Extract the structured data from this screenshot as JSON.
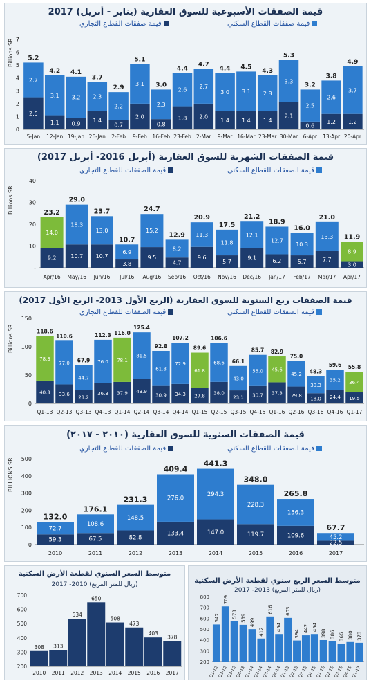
{
  "colors": {
    "dark": "#1d3c6e",
    "mid": "#2e7dcf",
    "green": "#7dbb3a",
    "bg": "#eef3f7"
  },
  "chart_data": [
    {
      "id": "weekly",
      "type": "bar",
      "title": "قيمة الصفقات الأسبوعية للسوق العقارية (يناير - أبريل) 2017",
      "ylabel": "Billions SR",
      "ylim": [
        0,
        7
      ],
      "yticks": [
        0,
        1,
        2,
        3,
        4,
        5,
        6,
        7
      ],
      "legend": [
        "قيمة صفقات القطاع السكني",
        "قيمة صفقات القطاع التجاري"
      ],
      "categories": [
        "5-Jan",
        "12-Jan",
        "19-Jan",
        "26-Jan",
        "2-Feb",
        "9-Feb",
        "16-Feb",
        "23-Feb",
        "2-Mar",
        "9-Mar",
        "16-Mar",
        "23-Mar",
        "30-Mar",
        "6-Apr",
        "13-Apr",
        "20-Apr"
      ],
      "totals": [
        "5.2",
        "4.2",
        "4.1",
        "3.7",
        "2.9",
        "5.1",
        "3.0",
        "4.4",
        "4.7",
        "4.4",
        "4.5",
        "4.3",
        "5.3",
        "3.2",
        "3.8",
        "4.9"
      ],
      "series": [
        {
          "name": "قيمة صفقات القطاع التجاري",
          "values": [
            2.5,
            1.1,
            0.9,
            1.4,
            0.7,
            2.0,
            0.8,
            1.8,
            2.0,
            1.4,
            1.4,
            1.4,
            2.1,
            0.6,
            1.2,
            1.2
          ],
          "labels": [
            "2.5",
            "1.1",
            "0.9",
            "1.4",
            "0.7",
            "2.0",
            "0.8",
            "1.8",
            "2.0",
            "1.4",
            "1.4",
            "1.4",
            "2.1",
            "0.6",
            "1.2",
            "1.2"
          ]
        },
        {
          "name": "قيمة صفقات القطاع السكني",
          "values": [
            2.7,
            3.1,
            3.2,
            2.3,
            2.2,
            3.1,
            2.3,
            2.6,
            2.7,
            3.0,
            3.1,
            2.8,
            3.3,
            2.5,
            2.6,
            3.7
          ],
          "labels": [
            "2.7",
            "3.1",
            "3.2",
            "2.3",
            "2.2",
            "3.1",
            "2.3",
            "2.6",
            "2.7",
            "3.0",
            "3.1",
            "2.8",
            "3.3",
            "2.5",
            "2.6",
            "3.7"
          ]
        }
      ],
      "green": []
    },
    {
      "id": "monthly",
      "type": "bar",
      "title": "قيمة الصفقات الشهرية للسوق العقارية (أبريل 2016- أبريل 2017)",
      "ylabel": "Billions SR",
      "ylim": [
        0,
        40
      ],
      "yticks": [
        "-",
        10,
        20,
        30,
        40
      ],
      "legend": [
        "قيمة الصفقات للقطاع السكني",
        "قيمة الصفقات للقطاع التجاري"
      ],
      "categories": [
        "Apr/16",
        "May/16",
        "Jun/16",
        "Jul/16",
        "Aug/16",
        "Sep/16",
        "Oct/16",
        "Nov/16",
        "Dec/16",
        "Jan/17",
        "Feb/17",
        "Mar/17",
        "Apr/17"
      ],
      "totals": [
        "23.2",
        "29.0",
        "23.7",
        "10.7",
        "24.7",
        "12.9",
        "20.9",
        "17.5",
        "21.2",
        "18.9",
        "16.0",
        "21.0",
        "11.9"
      ],
      "series": [
        {
          "name": "قيمة الصفقات للقطاع التجاري",
          "values": [
            9.2,
            10.7,
            10.7,
            3.8,
            9.5,
            4.7,
            9.6,
            5.7,
            9.1,
            6.2,
            5.7,
            7.7,
            3.0
          ],
          "labels": [
            "9.2",
            "10.7",
            "10.7",
            "3.8",
            "9.5",
            "4.7",
            "9.6",
            "5.7",
            "9.1",
            "6.2",
            "5.7",
            "7.7",
            "3.0"
          ]
        },
        {
          "name": "قيمة الصفقات للقطاع السكني",
          "values": [
            14.0,
            18.3,
            13.0,
            6.9,
            15.2,
            8.2,
            11.3,
            11.8,
            12.1,
            12.7,
            10.3,
            13.3,
            8.9
          ],
          "labels": [
            "14.0",
            "18.3",
            "13.0",
            "6.9",
            "15.2",
            "8.2",
            "11.3",
            "11.8",
            "12.1",
            "12.7",
            "10.3",
            "13.3",
            "8.9"
          ]
        }
      ],
      "green": [
        0,
        12
      ]
    },
    {
      "id": "quarterly",
      "type": "bar",
      "title": "قيمة الصفقات ربع السنوية للسوق العقارية (الربع الأول 2013- الربع الأول 2017)",
      "ylabel": "Billions SR",
      "ylim": [
        0,
        150
      ],
      "yticks": [
        0,
        50,
        100,
        150
      ],
      "legend": [
        "قيمة الصفقات للقطاع السكني",
        "قيمة الصفقات للقطاع التجاري"
      ],
      "categories": [
        "Q1-13",
        "Q2-13",
        "Q3-13",
        "Q4-13",
        "Q1-14",
        "Q2-14",
        "Q3-14",
        "Q4-14",
        "Q1-15",
        "Q2-15",
        "Q3-15",
        "Q4-15",
        "Q1-16",
        "Q2-16",
        "Q3-16",
        "Q4-16",
        "Q1-17"
      ],
      "totals": [
        "118.6",
        "110.6",
        "67.9",
        "112.3",
        "116.0",
        "125.4",
        "92.8",
        "107.2",
        "89.6",
        "106.6",
        "66.1",
        "85.7",
        "82.9",
        "75.0",
        "48.3",
        "59.6",
        "55.8"
      ],
      "series": [
        {
          "name": "قيمة الصفقات للقطاع التجاري",
          "values": [
            40.3,
            33.6,
            23.2,
            36.3,
            37.9,
            43.9,
            30.9,
            34.3,
            27.8,
            38.0,
            23.1,
            30.7,
            37.3,
            29.8,
            18.0,
            24.4,
            19.5
          ],
          "labels": [
            "40.3",
            "33.6",
            "23.2",
            "36.3",
            "37.9",
            "43.9",
            "30.9",
            "34.3",
            "27.8",
            "38.0",
            "23.1",
            "30.7",
            "37.3",
            "29.8",
            "18.0",
            "24.4",
            "19.5"
          ]
        },
        {
          "name": "قيمة الصفقات للقطاع السكني",
          "values": [
            78.3,
            77.0,
            44.7,
            76.0,
            78.1,
            81.5,
            61.8,
            72.9,
            61.8,
            68.6,
            43.0,
            55.0,
            45.6,
            45.2,
            30.3,
            35.2,
            36.4
          ],
          "labels": [
            "78.3",
            "77.0",
            "44.7",
            "76.0",
            "78.1",
            "81.5",
            "61.8",
            "72.9",
            "61.8",
            "68.6",
            "43.0",
            "55.0",
            "45.6",
            "45.2",
            "30.3",
            "35.2",
            "36.4"
          ]
        }
      ],
      "green": [
        0,
        4,
        8,
        12,
        16
      ]
    },
    {
      "id": "annual",
      "type": "bar",
      "title": "قيمة الصفقات السنوية للسوق العقارية (٢٠١٠ - ٢٠١٧)",
      "ylabel": "BILLIONS SR",
      "ylim": [
        0,
        500
      ],
      "yticks": [
        0,
        100,
        200,
        300,
        400,
        500
      ],
      "legend": [
        "قيمة الصفقات للقطاع السكني",
        "قيمة الصفقات للقطاع التجاري"
      ],
      "categories": [
        "2010",
        "2011",
        "2012",
        "2013",
        "2014",
        "2015",
        "2016",
        "2017"
      ],
      "totals": [
        "132.0",
        "176.1",
        "231.3",
        "409.4",
        "441.3",
        "348.0",
        "265.8",
        "67.7"
      ],
      "series": [
        {
          "name": "قيمة الصفقات للقطاع التجاري",
          "values": [
            59.3,
            67.5,
            82.8,
            133.4,
            147.0,
            119.7,
            109.6,
            22.5
          ],
          "labels": [
            "59.3",
            "67.5",
            "82.8",
            "133.4",
            "147.0",
            "119.7",
            "109.6",
            "22.5"
          ]
        },
        {
          "name": "قيمة الصفقات للقطاع السكني",
          "values": [
            72.7,
            108.6,
            148.5,
            276.0,
            294.3,
            228.3,
            156.3,
            45.2
          ],
          "labels": [
            "72.7",
            "108.6",
            "148.5",
            "276.0",
            "294.3",
            "228.3",
            "156.3",
            "45.2"
          ]
        }
      ],
      "green": []
    },
    {
      "id": "annual_price",
      "type": "bar",
      "title": "متوسط السعر السنوي لقطعة الأرض السكنية",
      "subtitle": "(ريال للمتر المربع) 2010- 2017",
      "ylim": [
        200,
        700
      ],
      "yticks": [
        200,
        300,
        400,
        500,
        600,
        700
      ],
      "categories": [
        "2010",
        "2011",
        "2012",
        "2013",
        "2014",
        "2015",
        "2016",
        "2017"
      ],
      "values": [
        308,
        313,
        534,
        650,
        508,
        473,
        403,
        378
      ],
      "labels": [
        "308",
        "313",
        "534",
        "650",
        "508",
        "473",
        "403",
        "378"
      ]
    },
    {
      "id": "quarterly_price",
      "type": "bar",
      "title": "متوسط السعر الربع سنوي لقطعة الأرض السكنية",
      "subtitle": "(ريال للمتر المربع) 2013- 2017",
      "ylim": [
        200,
        800
      ],
      "yticks": [
        200,
        300,
        400,
        500,
        600,
        700,
        800
      ],
      "categories": [
        "Q1-13",
        "Q2-13",
        "Q3-13",
        "Q4-13",
        "Q1-14",
        "Q2-14",
        "Q3-14",
        "Q4-14",
        "Q1-15",
        "Q2-15",
        "Q3-15",
        "Q4-15",
        "Q1-16",
        "Q2-16",
        "Q3-16",
        "Q4-16",
        "Q1-17"
      ],
      "values": [
        542,
        709,
        573,
        539,
        499,
        412,
        616,
        454,
        603,
        394,
        442,
        454,
        398,
        386,
        366,
        380,
        373
      ],
      "labels": [
        "542",
        "709",
        "573",
        "539",
        "499",
        "412",
        "616",
        "454",
        "603",
        "394",
        "442",
        "454",
        "398",
        "386",
        "366",
        "380",
        "373"
      ]
    }
  ]
}
